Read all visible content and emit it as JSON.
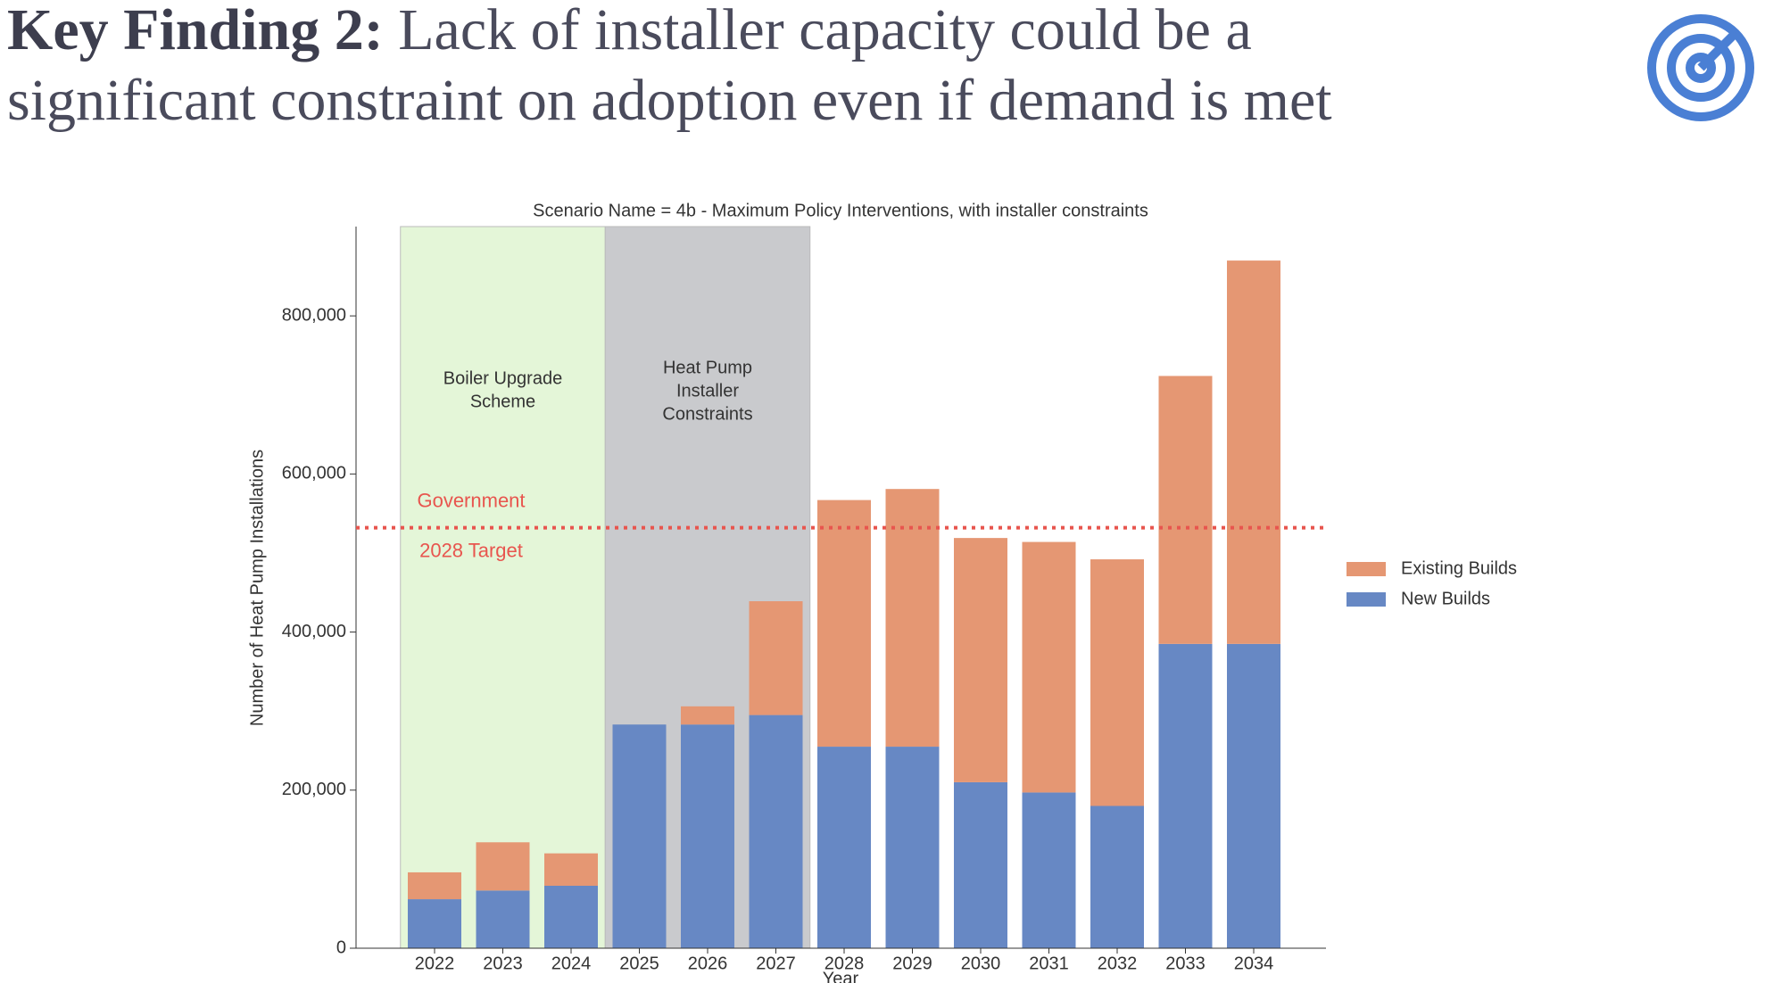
{
  "header": {
    "title_prefix": "Key Finding 2:",
    "title": "Lack of installer capacity could be a significant constraint on adoption even if demand is met"
  },
  "chart_data": {
    "type": "stacked_bar",
    "title": "Scenario Name = 4b - Maximum Policy Interventions, with installer constraints",
    "x_label": "Year",
    "y_label": "Number of Heat Pump Installations",
    "categories": [
      "2022",
      "2023",
      "2024",
      "2025",
      "2026",
      "2027",
      "2028",
      "2029",
      "2030",
      "2031",
      "2032",
      "2033",
      "2034"
    ],
    "series": [
      {
        "name": "New Builds",
        "color": "#6788c4",
        "values": [
          62000,
          73000,
          79000,
          283000,
          283000,
          295000,
          255000,
          255000,
          210000,
          197000,
          180000,
          385000,
          385000
        ]
      },
      {
        "name": "Existing Builds",
        "color": "#e59773",
        "values": [
          34000,
          61000,
          41000,
          0,
          23000,
          144000,
          312000,
          326000,
          309000,
          317000,
          312000,
          339000,
          485000
        ]
      }
    ],
    "ylim": [
      0,
      913000
    ],
    "yticks": [
      {
        "value": 0,
        "label": "0"
      },
      {
        "value": 200000,
        "label": "200,000"
      },
      {
        "value": 400000,
        "label": "400,000"
      },
      {
        "value": 600000,
        "label": "600,000"
      },
      {
        "value": 800000,
        "label": "800,000"
      }
    ],
    "target_value": 532000,
    "target_color": "#e8554e",
    "target_label": [
      "Government",
      "2028 Target"
    ],
    "regions": [
      {
        "lines": [
          "Boiler Upgrade",
          "Scheme"
        ],
        "color": "#e4f6d8"
      },
      {
        "lines": [
          "Heat Pump",
          "Installer",
          "Constraints"
        ],
        "color": "#c9cacd"
      }
    ]
  }
}
